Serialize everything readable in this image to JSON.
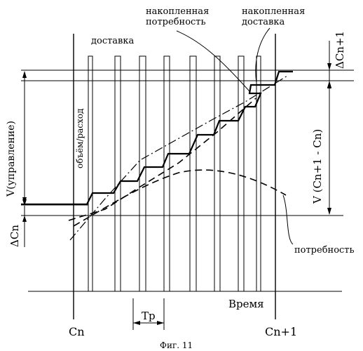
{
  "figure": {
    "caption": "Фиг. 11",
    "labels": {
      "delivery": "доставка",
      "accumulated_demand_line1": "накопленная",
      "accumulated_demand_line2": "потребность",
      "accumulated_delivery_line1": "накопленная",
      "accumulated_delivery_line2": "доставка",
      "delta_cn1": "ΔCn+1",
      "delta_cn": "ΔCn",
      "v_control": "V(управление)",
      "volume_consumption": "объём/расход",
      "v_cn1_cn": "V (Cn+1 - Cn)",
      "demand": "потребность",
      "time": "Время",
      "tp": "Tp",
      "cn": "Cn",
      "cn1": "Cn+1"
    }
  }
}
